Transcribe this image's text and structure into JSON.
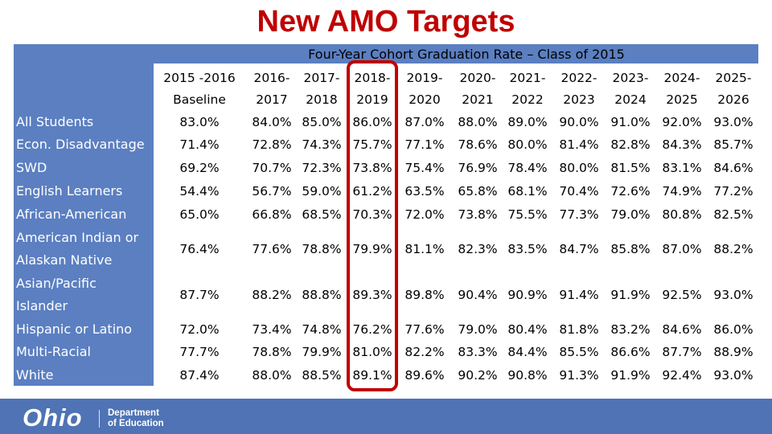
{
  "title": "New AMO Targets",
  "subtitle": "Four-Year Cohort Graduation Rate – Class of 2015",
  "columns": [
    {
      "line1": "2015 -2016",
      "line2": "Baseline"
    },
    {
      "line1": "2016-",
      "line2": "2017"
    },
    {
      "line1": "2017-",
      "line2": "2018"
    },
    {
      "line1": "2018-",
      "line2": "2019"
    },
    {
      "line1": "2019-",
      "line2": "2020"
    },
    {
      "line1": "2020-",
      "line2": "2021"
    },
    {
      "line1": "2021-",
      "line2": "2022"
    },
    {
      "line1": "2022-",
      "line2": "2023"
    },
    {
      "line1": "2023-",
      "line2": "2024"
    },
    {
      "line1": "2024-",
      "line2": "2025"
    },
    {
      "line1": "2025-",
      "line2": "2026"
    }
  ],
  "rows": [
    {
      "label": [
        "All Students"
      ],
      "values": [
        "83.0%",
        "84.0%",
        "85.0%",
        "86.0%",
        "87.0%",
        "88.0%",
        "89.0%",
        "90.0%",
        "91.0%",
        "92.0%",
        "93.0%"
      ]
    },
    {
      "label": [
        "Econ. Disadvantage"
      ],
      "values": [
        "71.4%",
        "72.8%",
        "74.3%",
        "75.7%",
        "77.1%",
        "78.6%",
        "80.0%",
        "81.4%",
        "82.8%",
        "84.3%",
        "85.7%"
      ]
    },
    {
      "label": [
        "SWD"
      ],
      "values": [
        "69.2%",
        "70.7%",
        "72.3%",
        "73.8%",
        "75.4%",
        "76.9%",
        "78.4%",
        "80.0%",
        "81.5%",
        "83.1%",
        "84.6%"
      ]
    },
    {
      "label": [
        "English Learners"
      ],
      "values": [
        "54.4%",
        "56.7%",
        "59.0%",
        "61.2%",
        "63.5%",
        "65.8%",
        "68.1%",
        "70.4%",
        "72.6%",
        "74.9%",
        "77.2%"
      ]
    },
    {
      "label": [
        "African-American"
      ],
      "values": [
        "65.0%",
        "66.8%",
        "68.5%",
        "70.3%",
        "72.0%",
        "73.8%",
        "75.5%",
        "77.3%",
        "79.0%",
        "80.8%",
        "82.5%"
      ]
    },
    {
      "label": [
        "American Indian or",
        "Alaskan Native"
      ],
      "values": [
        "76.4%",
        "77.6%",
        "78.8%",
        "79.9%",
        "81.1%",
        "82.3%",
        "83.5%",
        "84.7%",
        "85.8%",
        "87.0%",
        "88.2%"
      ]
    },
    {
      "label": [
        "Asian/Pacific",
        "Islander"
      ],
      "values": [
        "87.7%",
        "88.2%",
        "88.8%",
        "89.3%",
        "89.8%",
        "90.4%",
        "90.9%",
        "91.4%",
        "91.9%",
        "92.5%",
        "93.0%"
      ]
    },
    {
      "label": [
        "Hispanic or Latino"
      ],
      "values": [
        "72.0%",
        "73.4%",
        "74.8%",
        "76.2%",
        "77.6%",
        "79.0%",
        "80.4%",
        "81.8%",
        "83.2%",
        "84.6%",
        "86.0%"
      ]
    },
    {
      "label": [
        "Multi-Racial"
      ],
      "values": [
        "77.7%",
        "78.8%",
        "79.9%",
        "81.0%",
        "82.2%",
        "83.3%",
        "84.4%",
        "85.5%",
        "86.6%",
        "87.7%",
        "88.9%"
      ]
    },
    {
      "label": [
        "White"
      ],
      "values": [
        "87.4%",
        "88.0%",
        "88.5%",
        "89.1%",
        "89.6%",
        "90.2%",
        "90.8%",
        "91.3%",
        "91.9%",
        "92.4%",
        "93.0%"
      ]
    }
  ],
  "footer": {
    "logo_text": "Ohio",
    "dept_line1": "Department",
    "dept_line2": "of Education"
  },
  "colors": {
    "title": "#c00000",
    "label_panel": "#5b7fc1",
    "highlight_border": "#c00000",
    "footer_bar": "#4f73b5"
  }
}
